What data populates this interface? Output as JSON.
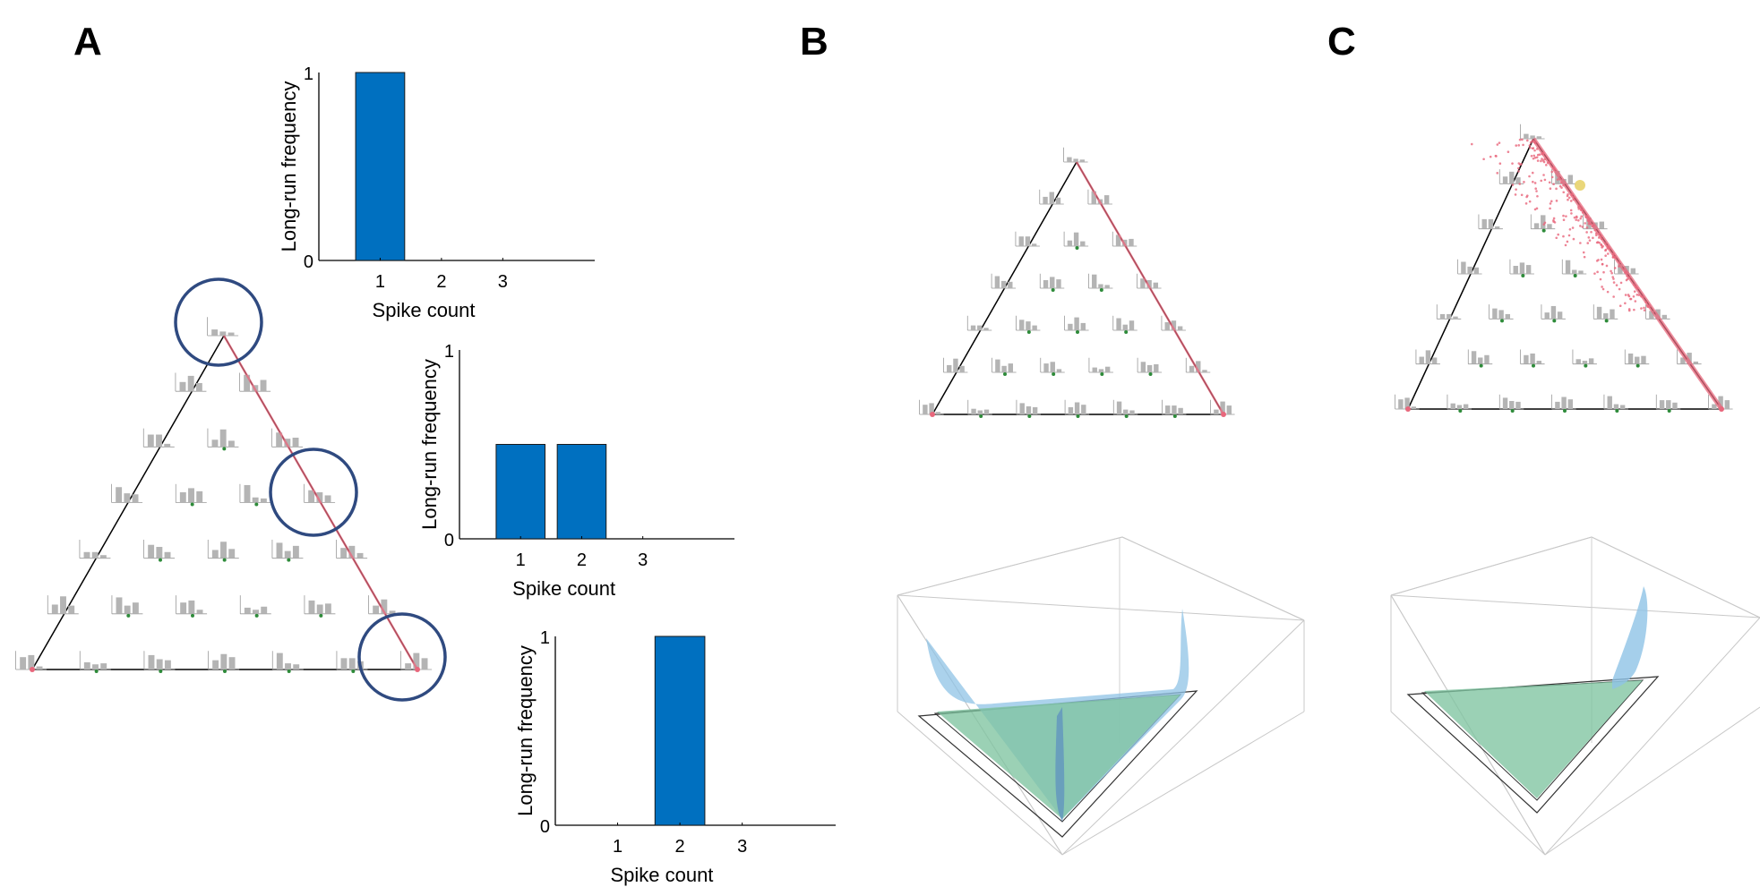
{
  "panels": {
    "a": "A",
    "b": "B",
    "c": "C"
  },
  "colors": {
    "bar": "#0070c0",
    "mini_bar": "#b4b4b4",
    "edge_red": "#e8677c",
    "dot_green": "#2e8b3a",
    "circle": "#2f4a80",
    "surface_green": "#7fc4a0",
    "surface_blue": "#8fc3e6"
  },
  "chart_data": [
    {
      "type": "bar",
      "categories": [
        "1",
        "2",
        "3"
      ],
      "values": [
        1,
        0,
        0
      ],
      "xlabel": "Spike count",
      "ylabel": "Long-run frequency",
      "ylim": [
        0,
        1
      ],
      "yticks": [
        "0",
        "1"
      ]
    },
    {
      "type": "bar",
      "categories": [
        "1",
        "2",
        "3"
      ],
      "values": [
        0.5,
        0.5,
        0
      ],
      "xlabel": "Spike count",
      "ylabel": "Long-run frequency",
      "ylim": [
        0,
        1
      ],
      "yticks": [
        "0",
        "1"
      ]
    },
    {
      "type": "bar",
      "categories": [
        "1",
        "2",
        "3"
      ],
      "values": [
        0,
        1,
        0
      ],
      "xlabel": "Spike count",
      "ylabel": "Long-run frequency",
      "ylim": [
        0,
        1
      ],
      "yticks": [
        "0",
        "1"
      ]
    }
  ]
}
